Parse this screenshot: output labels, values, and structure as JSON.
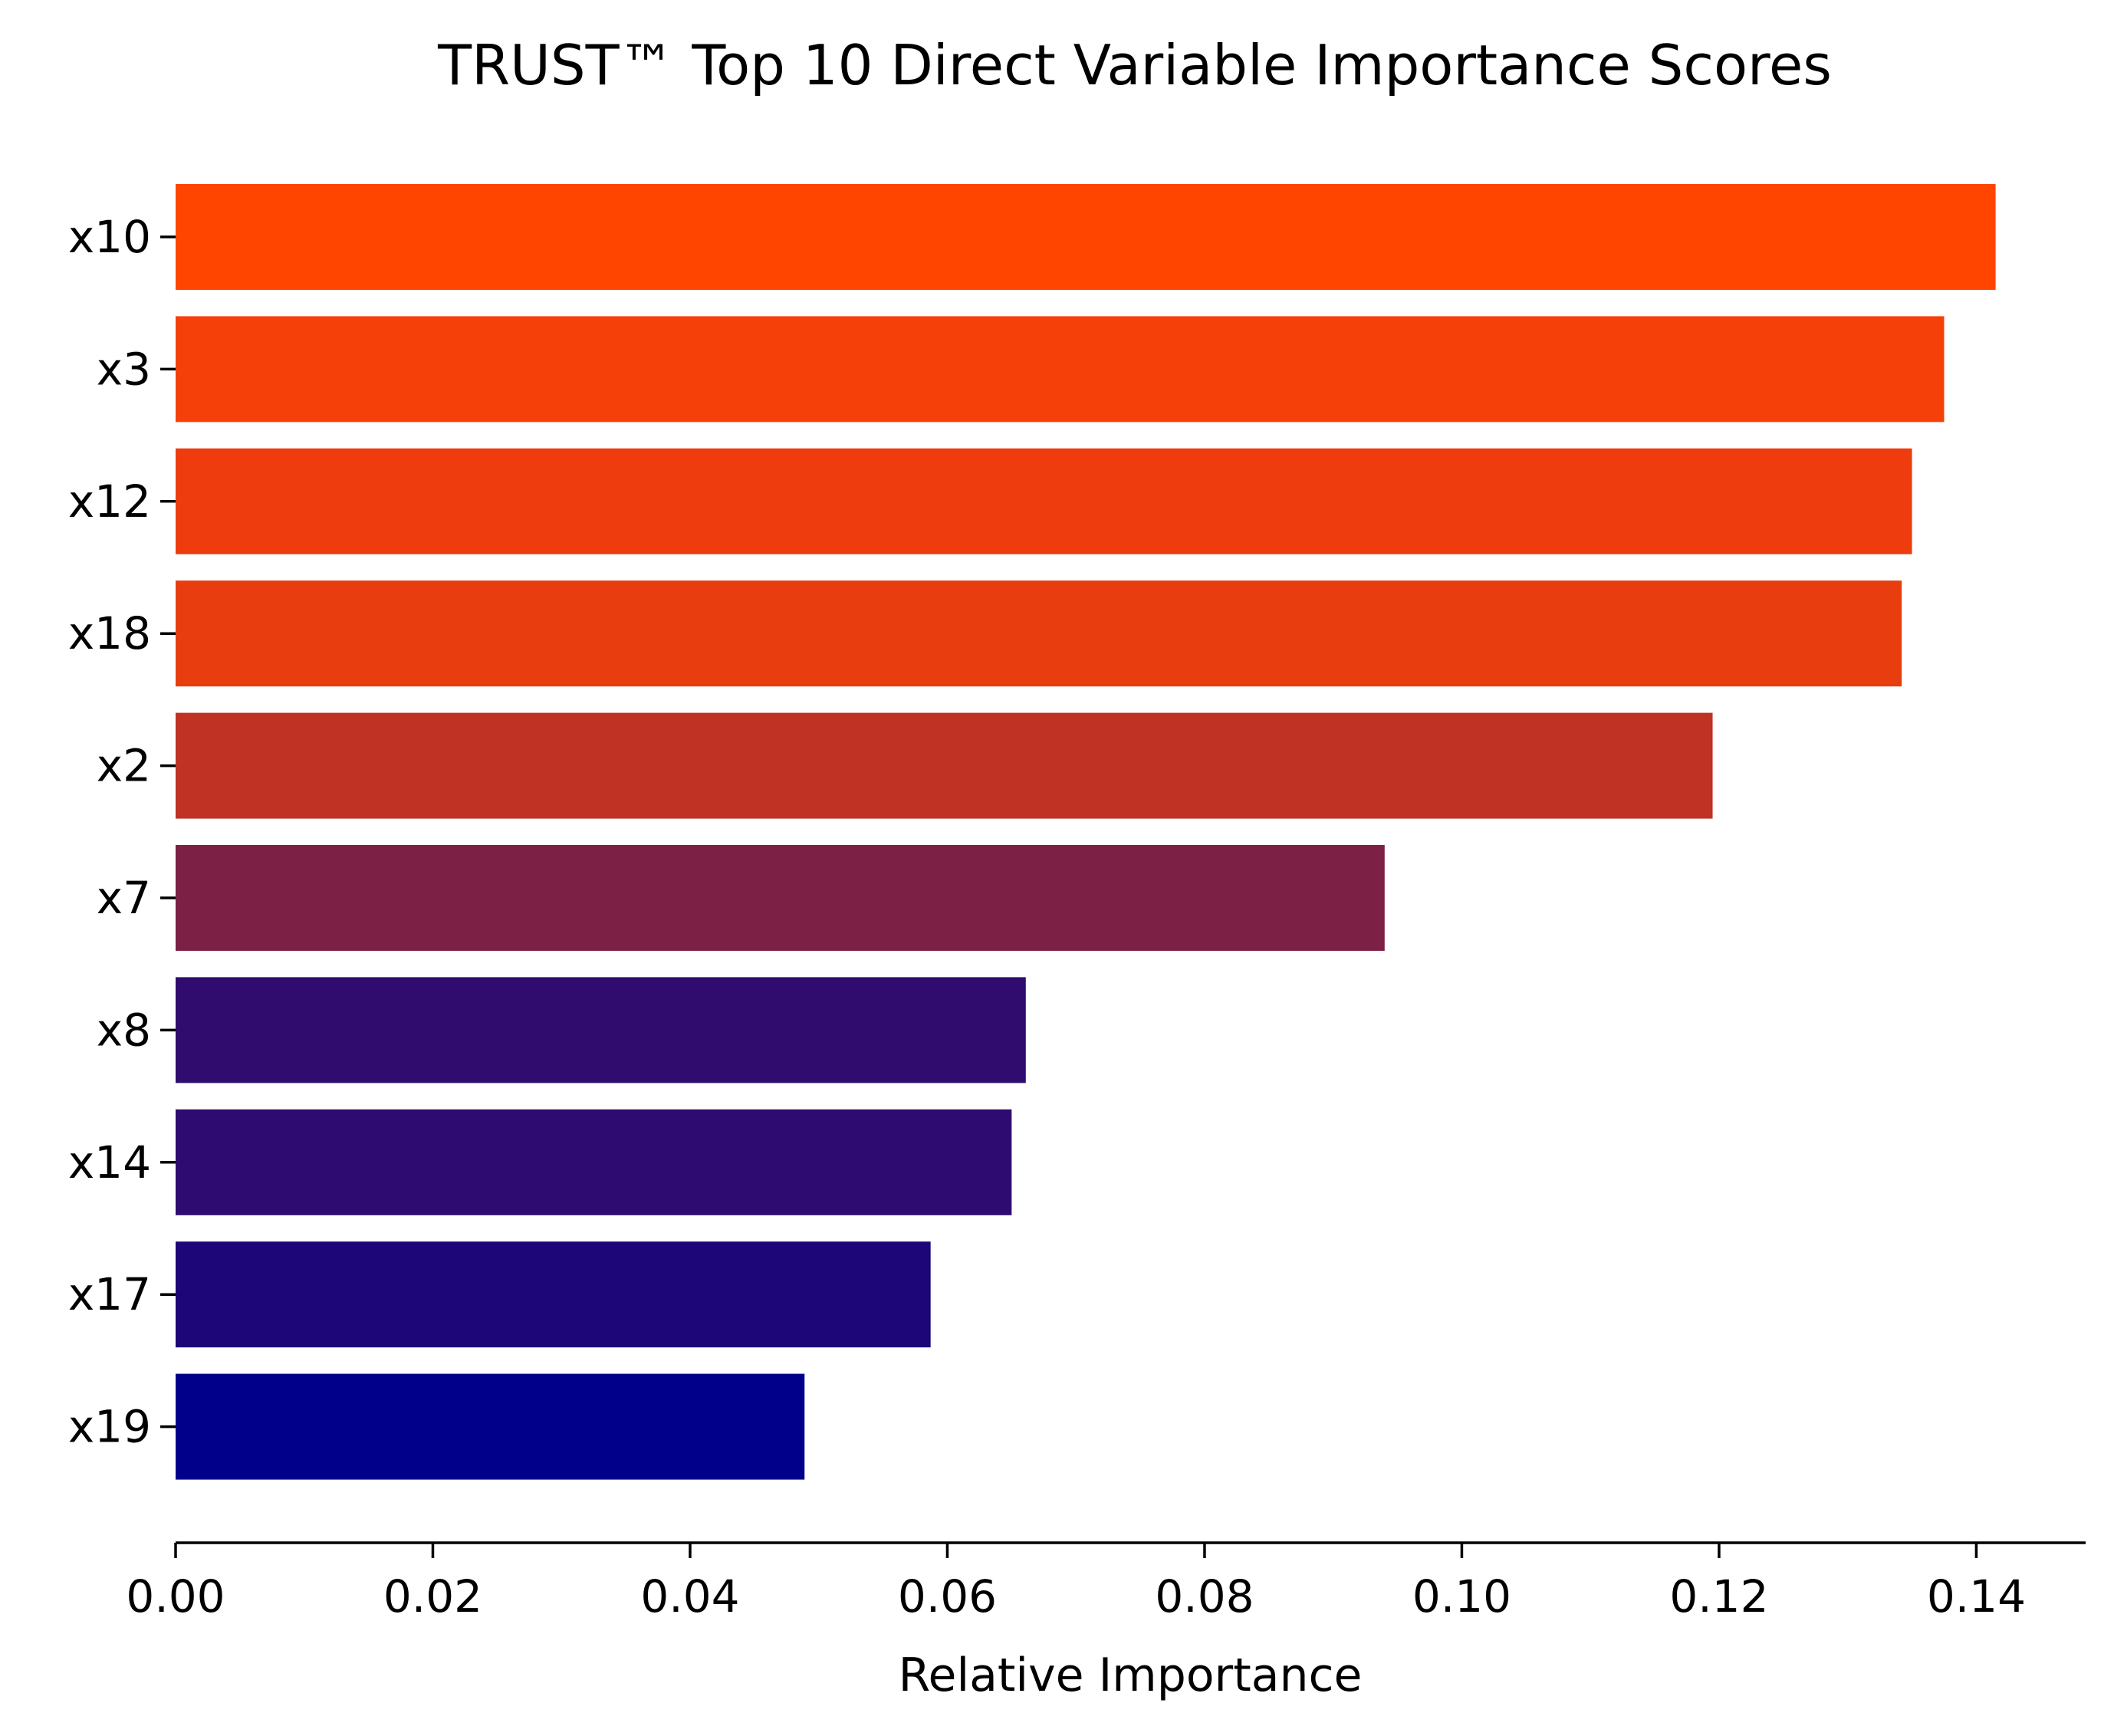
{
  "chart_data": {
    "type": "bar",
    "orientation": "horizontal",
    "title": "TRUST™ Top 10 Direct Variable Importance Scores",
    "xlabel": "Relative Importance",
    "ylabel": "",
    "categories": [
      "x10",
      "x3",
      "x12",
      "x18",
      "x2",
      "x7",
      "x8",
      "x14",
      "x17",
      "x19"
    ],
    "values": [
      0.1415,
      0.1375,
      0.135,
      0.1342,
      0.1195,
      0.094,
      0.0661,
      0.065,
      0.0587,
      0.0489
    ],
    "colors": [
      "#ff4500",
      "#f5400a",
      "#ee3c0e",
      "#e83d0f",
      "#c03224",
      "#7d2045",
      "#300c6e",
      "#2e0b70",
      "#1c0678",
      "#00008b"
    ],
    "xlim": [
      0,
      0.1485
    ],
    "xticks": [
      0.0,
      0.02,
      0.04,
      0.06,
      0.08,
      0.1,
      0.12,
      0.14
    ],
    "xtick_labels": [
      "0.00",
      "0.02",
      "0.04",
      "0.06",
      "0.08",
      "0.10",
      "0.12",
      "0.14"
    ],
    "grid": false,
    "legend": "none"
  }
}
